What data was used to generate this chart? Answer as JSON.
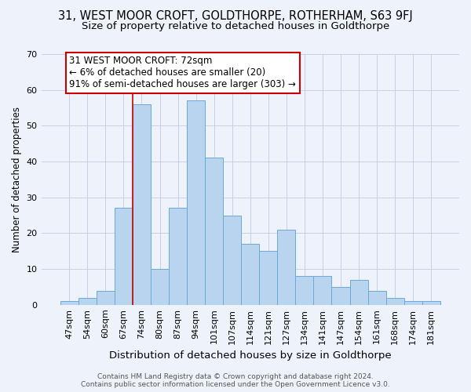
{
  "title1": "31, WEST MOOR CROFT, GOLDTHORPE, ROTHERHAM, S63 9FJ",
  "title2": "Size of property relative to detached houses in Goldthorpe",
  "xlabel": "Distribution of detached houses by size in Goldthorpe",
  "ylabel": "Number of detached properties",
  "categories": [
    "47sqm",
    "54sqm",
    "60sqm",
    "67sqm",
    "74sqm",
    "80sqm",
    "87sqm",
    "94sqm",
    "101sqm",
    "107sqm",
    "114sqm",
    "121sqm",
    "127sqm",
    "134sqm",
    "141sqm",
    "147sqm",
    "154sqm",
    "161sqm",
    "168sqm",
    "174sqm",
    "181sqm"
  ],
  "values": [
    1,
    2,
    4,
    27,
    56,
    10,
    27,
    57,
    41,
    25,
    17,
    15,
    21,
    8,
    8,
    5,
    7,
    4,
    2,
    1,
    1
  ],
  "bar_color": "#b8d4ee",
  "bar_edge_color": "#6aaad4",
  "annotation_text": "31 WEST MOOR CROFT: 72sqm\n← 6% of detached houses are smaller (20)\n91% of semi-detached houses are larger (303) →",
  "annotation_box_color": "#ffffff",
  "annotation_box_edge": "#cc0000",
  "vline_color": "#cc0000",
  "background_color": "#eef2fb",
  "grid_color": "#c8cfe8",
  "ylim": [
    0,
    70
  ],
  "yticks": [
    0,
    10,
    20,
    30,
    40,
    50,
    60,
    70
  ],
  "footer": "Contains HM Land Registry data © Crown copyright and database right 2024.\nContains public sector information licensed under the Open Government Licence v3.0.",
  "title1_fontsize": 10.5,
  "title2_fontsize": 9.5,
  "ann_fontsize": 8.5,
  "xlabel_fontsize": 9.5,
  "ylabel_fontsize": 8.5,
  "tick_fontsize": 8,
  "footer_fontsize": 6.5
}
